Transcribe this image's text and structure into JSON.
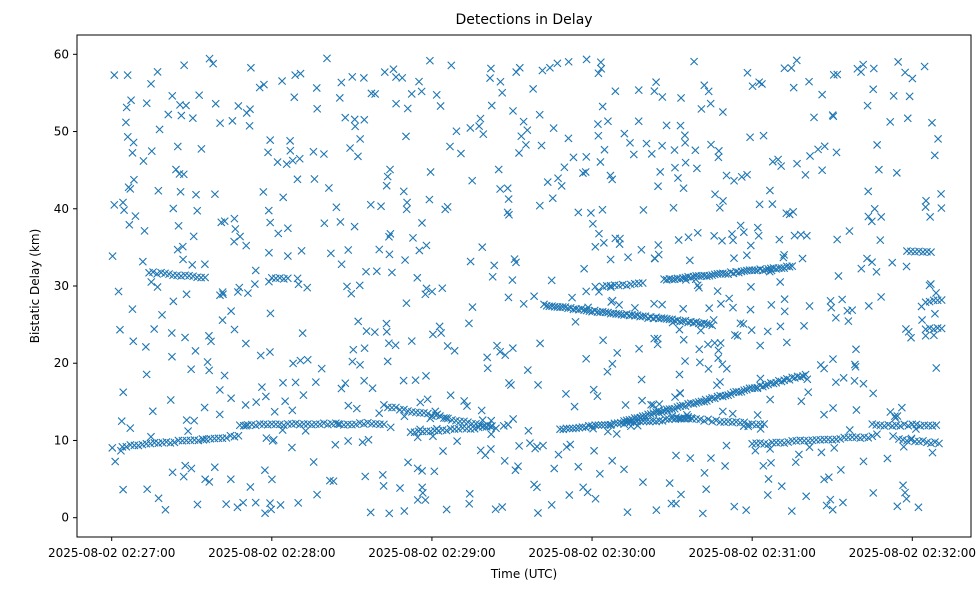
{
  "chart_data": {
    "type": "scatter",
    "title": "Detections in Delay",
    "xlabel": "Time (UTC)",
    "ylabel": "Bistatic Delay (km)",
    "xlim": [
      "2025-08-02 02:26:47",
      "2025-08-02 02:32:22"
    ],
    "ylim": [
      -2.5,
      62.5
    ],
    "x_ticks": [
      {
        "value": "2025-08-02 02:27:00",
        "label": "2025-08-02 02:27:00"
      },
      {
        "value": "2025-08-02 02:28:00",
        "label": "2025-08-02 02:28:00"
      },
      {
        "value": "2025-08-02 02:29:00",
        "label": "2025-08-02 02:29:00"
      },
      {
        "value": "2025-08-02 02:30:00",
        "label": "2025-08-02 02:30:00"
      },
      {
        "value": "2025-08-02 02:31:00",
        "label": "2025-08-02 02:31:00"
      },
      {
        "value": "2025-08-02 02:32:00",
        "label": "2025-08-02 02:32:00"
      }
    ],
    "y_ticks": [
      0,
      10,
      20,
      30,
      40,
      50,
      60
    ],
    "marker": "x",
    "color": "#1f77b4",
    "grid": false,
    "legend": "none",
    "series": [
      {
        "name": "",
        "tracks": [
          {
            "start": "2025-08-02 02:27:04",
            "end": "2025-08-02 02:27:48",
            "y0": 9.2,
            "y1": 10.6,
            "step_s": 1.5
          },
          {
            "start": "2025-08-02 02:27:48",
            "end": "2025-08-02 02:28:42",
            "y0": 12.0,
            "y1": 12.2,
            "step_s": 1.5
          },
          {
            "start": "2025-08-02 02:28:42",
            "end": "2025-08-02 02:29:25",
            "y0": 14.5,
            "y1": 11.6,
            "step_s": 1.5
          },
          {
            "start": "2025-08-02 02:28:52",
            "end": "2025-08-02 02:29:22",
            "y0": 11.0,
            "y1": 11.8,
            "step_s": 1.5
          },
          {
            "start": "2025-08-02 02:29:48",
            "end": "2025-08-02 02:30:38",
            "y0": 11.5,
            "y1": 13.0,
            "step_s": 1.2
          },
          {
            "start": "2025-08-02 02:30:12",
            "end": "2025-08-02 02:31:20",
            "y0": 12.5,
            "y1": 18.5,
            "step_s": 1.0
          },
          {
            "start": "2025-08-02 02:30:30",
            "end": "2025-08-02 02:31:05",
            "y0": 13.0,
            "y1": 12.0,
            "step_s": 1.5
          },
          {
            "start": "2025-08-02 02:31:00",
            "end": "2025-08-02 02:31:45",
            "y0": 9.5,
            "y1": 10.5,
            "step_s": 1.5
          },
          {
            "start": "2025-08-02 02:31:45",
            "end": "2025-08-02 02:32:10",
            "y0": 12.0,
            "y1": 12.0,
            "step_s": 1.5
          },
          {
            "start": "2025-08-02 02:31:55",
            "end": "2025-08-02 02:32:10",
            "y0": 10.2,
            "y1": 9.6,
            "step_s": 1.5
          },
          {
            "start": "2025-08-02 02:29:42",
            "end": "2025-08-02 02:30:45",
            "y0": 27.5,
            "y1": 25.0,
            "step_s": 1.0
          },
          {
            "start": "2025-08-02 02:30:04",
            "end": "2025-08-02 02:30:20",
            "y0": 30.0,
            "y1": 30.3,
            "step_s": 1.5
          },
          {
            "start": "2025-08-02 02:30:27",
            "end": "2025-08-02 02:31:15",
            "y0": 30.8,
            "y1": 32.5,
            "step_s": 1.0
          },
          {
            "start": "2025-08-02 02:27:14",
            "end": "2025-08-02 02:27:35",
            "y0": 31.8,
            "y1": 31.0,
            "step_s": 1.5
          },
          {
            "start": "2025-08-02 02:28:00",
            "end": "2025-08-02 02:28:06",
            "y0": 31.0,
            "y1": 31.0,
            "step_s": 1.5
          },
          {
            "start": "2025-08-02 02:31:58",
            "end": "2025-08-02 02:32:08",
            "y0": 34.5,
            "y1": 34.5,
            "step_s": 1.5
          },
          {
            "start": "2025-08-02 02:32:05",
            "end": "2025-08-02 02:32:12",
            "y0": 28.0,
            "y1": 28.2,
            "step_s": 1.5
          },
          {
            "start": "2025-08-02 02:32:05",
            "end": "2025-08-02 02:32:12",
            "y0": 24.5,
            "y1": 24.5,
            "step_s": 1.5
          }
        ],
        "clutter": {
          "count": 820,
          "x_range": [
            "2025-08-02 02:27:00",
            "2025-08-02 02:32:12"
          ],
          "y_range": [
            0.5,
            59.5
          ],
          "seed": 20250802
        }
      }
    ]
  }
}
